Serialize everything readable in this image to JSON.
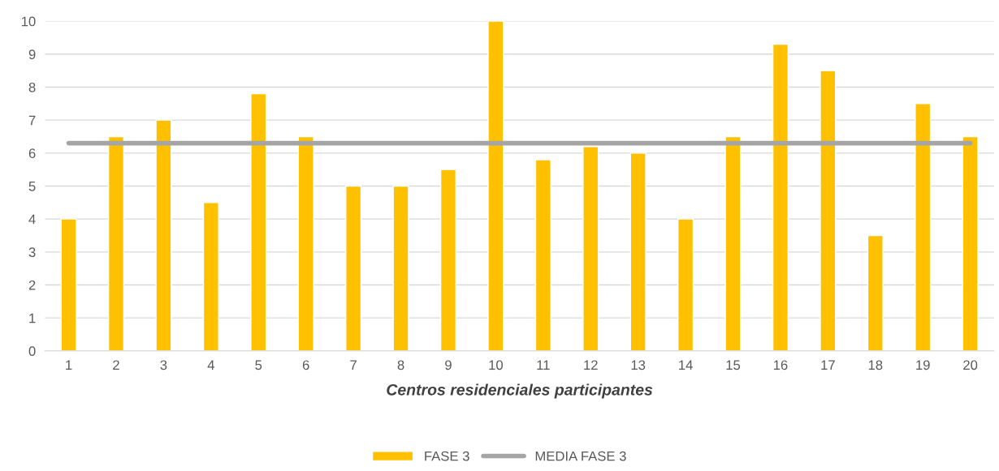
{
  "chart_data": {
    "type": "bar",
    "xlabel": "Centros residenciales participantes",
    "categories": [
      "1",
      "2",
      "3",
      "4",
      "5",
      "6",
      "7",
      "8",
      "9",
      "10",
      "11",
      "12",
      "13",
      "14",
      "15",
      "16",
      "17",
      "18",
      "19",
      "20"
    ],
    "series": [
      {
        "name": "FASE 3",
        "color": "#ffc000",
        "values": [
          4,
          6.5,
          7,
          4.5,
          7.8,
          6.5,
          5,
          5,
          5.5,
          10,
          5.8,
          6.2,
          6,
          4,
          6.5,
          9.3,
          8.5,
          3.5,
          7.5,
          6.5
        ]
      },
      {
        "name": "MEDIA FASE 3",
        "type": "line",
        "color": "#a5a5a5",
        "values": [
          6.3,
          6.3,
          6.3,
          6.3,
          6.3,
          6.3,
          6.3,
          6.3,
          6.3,
          6.3,
          6.3,
          6.3,
          6.3,
          6.3,
          6.3,
          6.3,
          6.3,
          6.3,
          6.3,
          6.3
        ]
      }
    ],
    "ylim": [
      0,
      10
    ],
    "yticks": [
      0,
      1,
      2,
      3,
      4,
      5,
      6,
      7,
      8,
      9,
      10
    ],
    "grid": "y",
    "legend": "bottom"
  }
}
